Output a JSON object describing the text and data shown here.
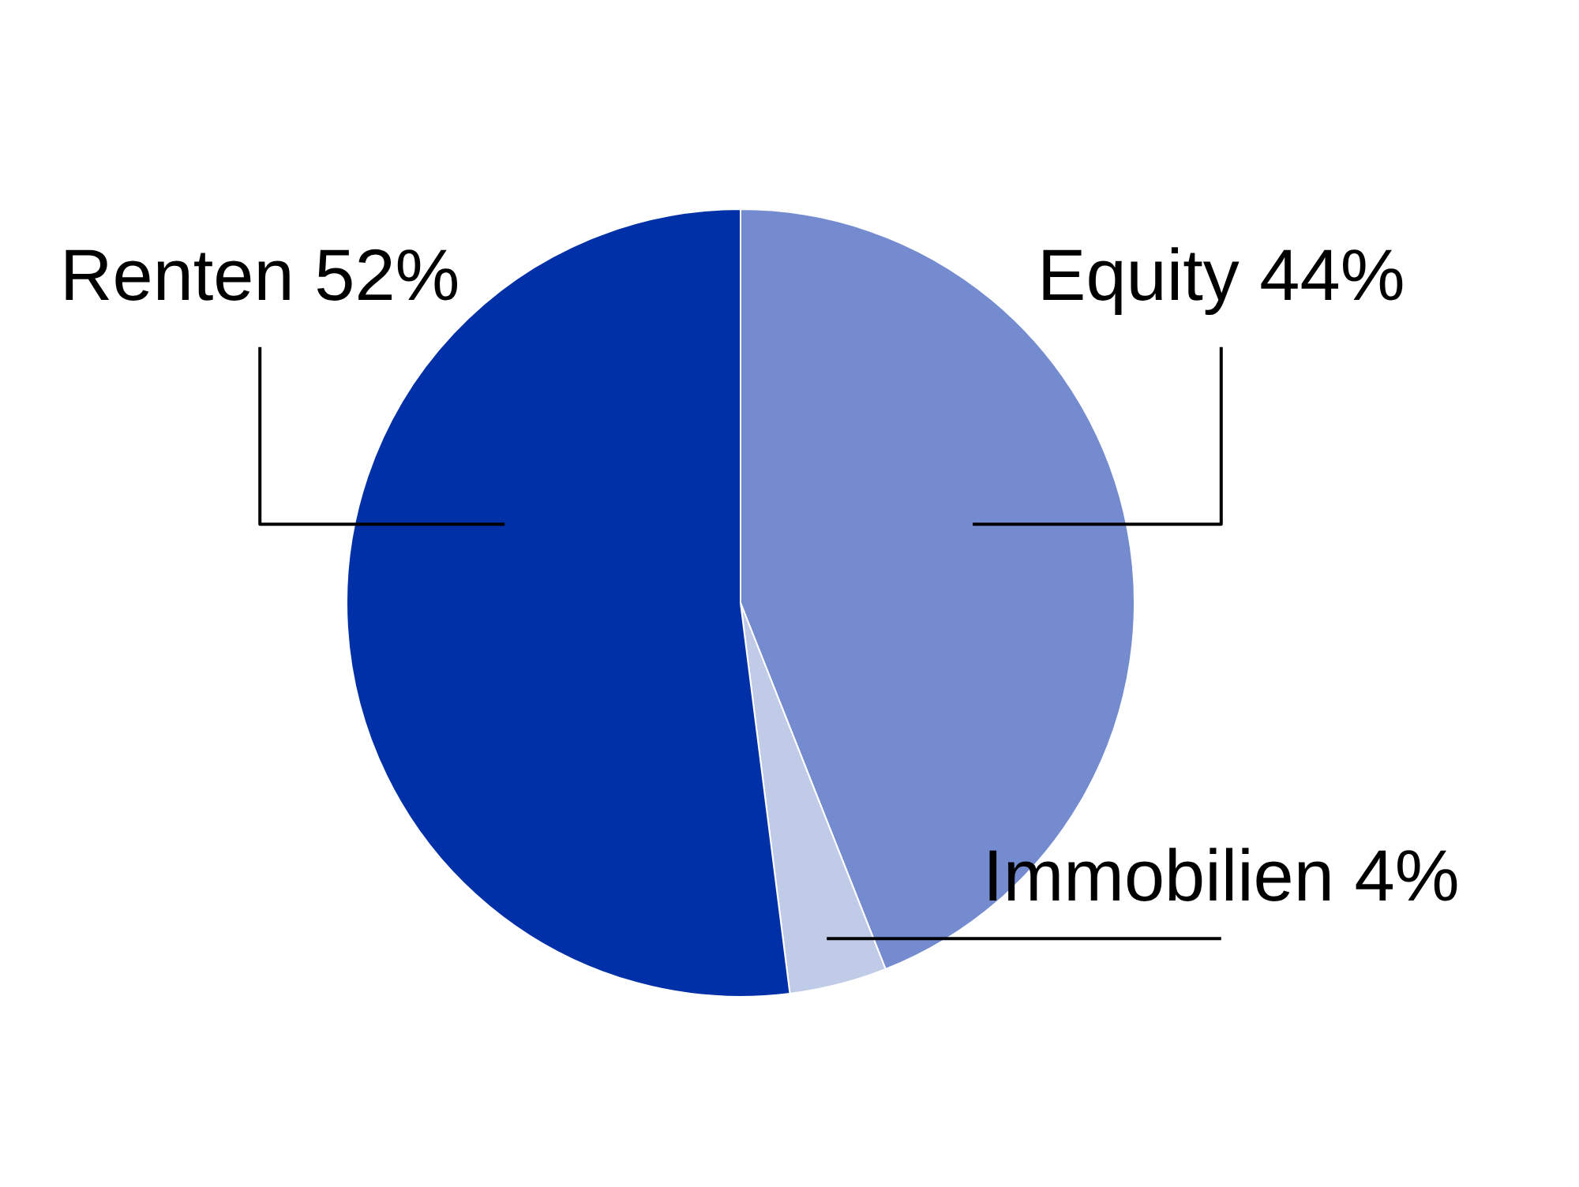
{
  "chart_data": {
    "type": "pie",
    "categories": [
      "Equity",
      "Immobilien",
      "Renten"
    ],
    "values": [
      44,
      4,
      52
    ],
    "colors": [
      "#748ccf",
      "#c0cbe8",
      "#0030a8"
    ],
    "value_labels": [
      "44%",
      "4%",
      "52%"
    ],
    "legend": false
  }
}
